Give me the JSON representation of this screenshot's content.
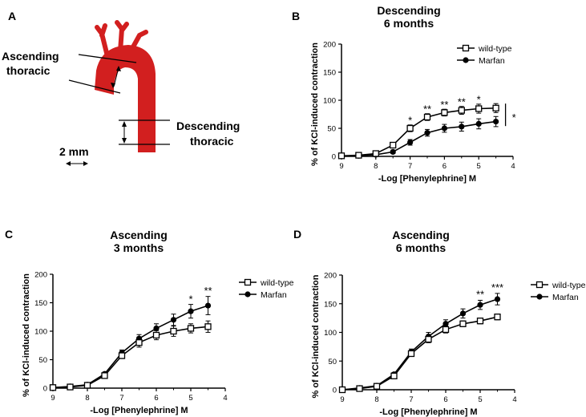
{
  "panels": {
    "A": {
      "letter": "A",
      "label_ascending_1": "Ascending",
      "label_ascending_2": "thoracic",
      "label_descending_1": "Descending",
      "label_descending_2": "thoracic",
      "scale_label": "2 mm",
      "colors": {
        "aorta": "#d21f1f"
      }
    }
  },
  "chart_data": [
    {
      "id": "B",
      "letter": "B",
      "type": "line",
      "title": [
        "Descending",
        "6 months"
      ],
      "xlabel": "-Log [Phenylephrine] M",
      "ylabel": "% of KCl-induced contraction",
      "xlim": [
        9,
        4
      ],
      "ylim": [
        0,
        200
      ],
      "xticks": [
        9,
        8,
        7,
        6,
        5,
        4
      ],
      "yticks": [
        0,
        50,
        100,
        150,
        200
      ],
      "x": [
        9,
        8.5,
        8,
        7.5,
        7,
        6.5,
        6,
        5.5,
        5,
        4.5
      ],
      "series": [
        {
          "name": "wild-type",
          "marker": "open-square",
          "values": [
            1,
            2,
            5,
            20,
            50,
            70,
            78,
            82,
            85,
            86
          ],
          "errors": [
            1,
            2,
            3,
            4,
            6,
            6,
            6,
            7,
            8,
            8
          ]
        },
        {
          "name": "Marfan",
          "marker": "filled-circle",
          "values": [
            1,
            1,
            3,
            8,
            25,
            42,
            50,
            53,
            58,
            62
          ],
          "errors": [
            1,
            1,
            2,
            3,
            5,
            6,
            7,
            8,
            9,
            9
          ]
        }
      ],
      "annotations": [
        {
          "x": 7,
          "y": 58,
          "text": "*"
        },
        {
          "x": 6.5,
          "y": 78,
          "text": "**"
        },
        {
          "x": 6,
          "y": 86,
          "text": "**"
        },
        {
          "x": 5.5,
          "y": 91,
          "text": "**"
        },
        {
          "x": 5,
          "y": 95,
          "text": "*"
        }
      ],
      "sig_bar_text": "*",
      "legend": "top-right"
    },
    {
      "id": "C",
      "letter": "C",
      "type": "line",
      "title": [
        "Ascending",
        "3 months"
      ],
      "xlabel": "-Log [Phenylephrine] M",
      "ylabel": "% of KCl-induced contraction",
      "xlim": [
        9,
        4
      ],
      "ylim": [
        0,
        200
      ],
      "xticks": [
        9,
        8,
        7,
        6,
        5,
        4
      ],
      "yticks": [
        0,
        50,
        100,
        150,
        200
      ],
      "x": [
        9,
        8.5,
        8,
        7.5,
        7,
        6.5,
        6,
        5.5,
        5,
        4.5
      ],
      "series": [
        {
          "name": "wild-type",
          "marker": "open-square",
          "values": [
            1,
            2,
            5,
            22,
            57,
            80,
            93,
            100,
            105,
            108
          ],
          "errors": [
            1,
            1,
            2,
            3,
            5,
            8,
            8,
            9,
            8,
            10
          ]
        },
        {
          "name": "Marfan",
          "marker": "filled-circle",
          "values": [
            1,
            3,
            6,
            25,
            62,
            87,
            105,
            120,
            135,
            145
          ],
          "errors": [
            1,
            1,
            2,
            3,
            5,
            7,
            8,
            10,
            12,
            16
          ]
        }
      ],
      "annotations": [
        {
          "x": 5,
          "y": 150,
          "text": "*"
        },
        {
          "x": 4.5,
          "y": 165,
          "text": "**"
        }
      ],
      "legend": "right"
    },
    {
      "id": "D",
      "letter": "D",
      "type": "line",
      "title": [
        "Ascending",
        "6 months"
      ],
      "xlabel": "-Log [Phenylephrine] M",
      "ylabel": "% of KCl-induced contraction",
      "xlim": [
        9,
        4
      ],
      "ylim": [
        0,
        200
      ],
      "xticks": [
        9,
        8,
        7,
        6,
        5,
        4
      ],
      "yticks": [
        0,
        50,
        100,
        150,
        200
      ],
      "x": [
        9,
        8.5,
        8,
        7.5,
        7,
        6.5,
        6,
        5.5,
        5,
        4.5
      ],
      "series": [
        {
          "name": "wild-type",
          "marker": "open-square",
          "values": [
            0,
            2,
            6,
            24,
            63,
            88,
            105,
            115,
            120,
            127
          ],
          "errors": [
            1,
            1,
            2,
            3,
            5,
            6,
            6,
            5,
            5,
            5
          ]
        },
        {
          "name": "Marfan",
          "marker": "filled-circle",
          "values": [
            0,
            3,
            7,
            27,
            66,
            93,
            115,
            133,
            148,
            158
          ],
          "errors": [
            1,
            1,
            2,
            3,
            5,
            7,
            7,
            8,
            8,
            10
          ]
        }
      ],
      "annotations": [
        {
          "x": 5,
          "y": 160,
          "text": "**"
        },
        {
          "x": 4.5,
          "y": 172,
          "text": "***"
        }
      ],
      "legend": "right"
    }
  ]
}
